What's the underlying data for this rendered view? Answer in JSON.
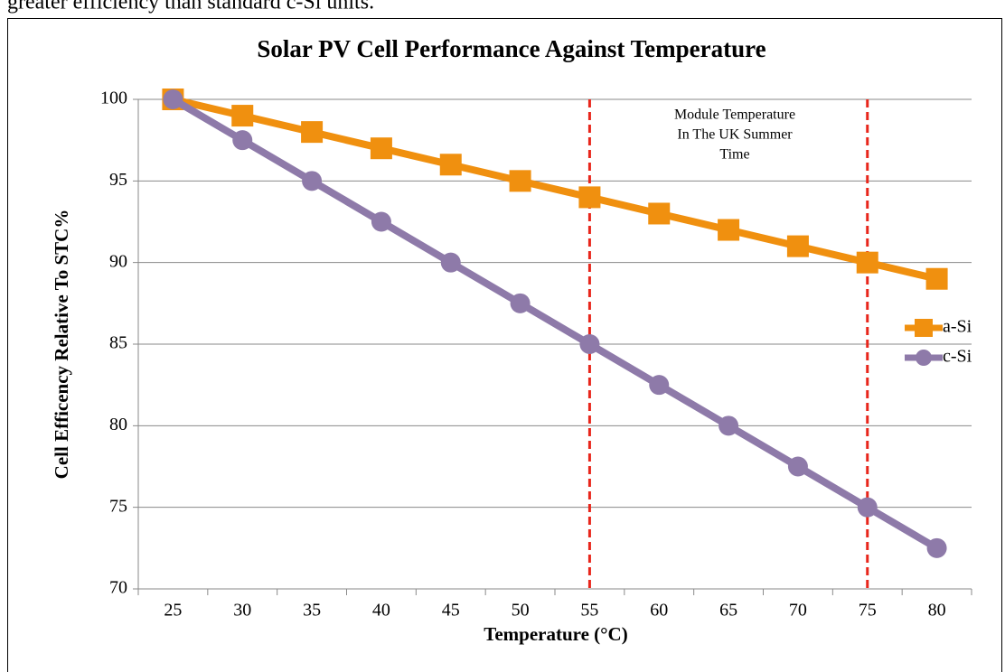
{
  "caption": "greater efficiency than standard c-Si units.",
  "chart_data": {
    "type": "line",
    "title": "Solar PV Cell Performance Against Temperature",
    "xlabel": "Temperature (°C)",
    "ylabel": "Cell Efficency Relative To STC%",
    "categories": [
      25,
      30,
      35,
      40,
      45,
      50,
      55,
      60,
      65,
      70,
      75,
      80
    ],
    "series": [
      {
        "name": "a-Si",
        "color": "#f0900f",
        "marker": "square",
        "values": [
          100,
          99,
          98,
          97,
          96,
          95,
          94,
          93,
          92,
          91,
          90,
          89
        ]
      },
      {
        "name": "c-Si",
        "color": "#8e7aa9",
        "marker": "circle",
        "values": [
          100,
          97.5,
          95,
          92.5,
          90,
          87.5,
          85,
          82.5,
          80,
          77.5,
          75,
          72.5
        ]
      }
    ],
    "ylim": [
      70,
      100
    ],
    "yticks": [
      70,
      75,
      80,
      85,
      90,
      95,
      100
    ],
    "grid": true,
    "legend": "right",
    "annotation": {
      "text": [
        "Module Temperature",
        "In The UK Summer",
        "Time"
      ],
      "lines_at": [
        55,
        75
      ],
      "color": "#e8261b"
    }
  }
}
